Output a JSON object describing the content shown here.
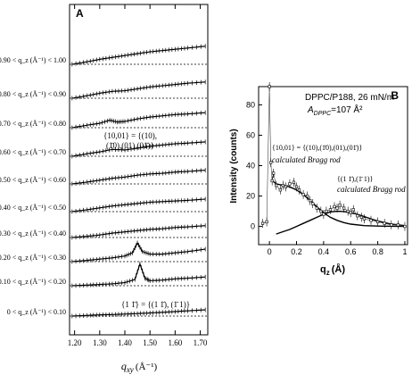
{
  "chart_data": [
    {
      "panel_label": "A",
      "type": "line",
      "xlabel": "q_xy (Å⁻¹)",
      "xlabel_main": "q",
      "xlabel_sub": "xy",
      "xlabel_unit": "(Å⁻¹)",
      "xlim": [
        1.18,
        1.73
      ],
      "x_ticks": [
        1.2,
        1.3,
        1.4,
        1.5,
        1.6,
        1.7
      ],
      "x_tick_labels": [
        "1.20",
        "1.30",
        "1.40",
        "1.50",
        "1.60",
        "1.70"
      ],
      "series": [
        {
          "name": "0 < q_z (Å⁻¹) < 0.10",
          "x": [
            1.19,
            1.25,
            1.3,
            1.35,
            1.4,
            1.45,
            1.5,
            1.55,
            1.6,
            1.65,
            1.72
          ],
          "y": [
            0.0,
            0.05,
            0.1,
            0.12,
            0.16,
            0.2,
            0.25,
            0.3,
            0.36,
            0.42,
            0.5
          ]
        },
        {
          "name": "0.10 < q_z (Å⁻¹) < 0.20",
          "x": [
            1.19,
            1.25,
            1.3,
            1.35,
            1.4,
            1.44,
            1.46,
            1.48,
            1.5,
            1.55,
            1.6,
            1.65,
            1.72
          ],
          "y": [
            0.0,
            0.05,
            0.1,
            0.15,
            0.25,
            0.5,
            1.75,
            0.6,
            0.4,
            0.45,
            0.55,
            0.6,
            0.7
          ]
        },
        {
          "name": "0.20 < q_z (Å⁻¹) < 0.30",
          "x": [
            1.19,
            1.25,
            1.3,
            1.35,
            1.4,
            1.43,
            1.45,
            1.47,
            1.5,
            1.55,
            1.6,
            1.65,
            1.72
          ],
          "y": [
            0.0,
            0.1,
            0.2,
            0.3,
            0.45,
            0.7,
            1.5,
            0.8,
            0.6,
            0.6,
            0.7,
            0.8,
            1.0
          ]
        },
        {
          "name": "0.30 < q_z (Å⁻¹) < 0.40",
          "x": [
            1.19,
            1.25,
            1.3,
            1.35,
            1.4,
            1.45,
            1.5,
            1.55,
            1.6,
            1.65,
            1.72
          ],
          "y": [
            0.0,
            0.1,
            0.2,
            0.35,
            0.45,
            0.55,
            0.65,
            0.7,
            0.8,
            0.85,
            0.95
          ]
        },
        {
          "name": "0.40 < q_z (Å⁻¹) < 0.50",
          "x": [
            1.19,
            1.25,
            1.3,
            1.35,
            1.4,
            1.45,
            1.5,
            1.55,
            1.6,
            1.65,
            1.72
          ],
          "y": [
            0.0,
            0.15,
            0.3,
            0.45,
            0.55,
            0.65,
            0.75,
            0.8,
            0.85,
            0.9,
            1.0
          ]
        },
        {
          "name": "0.50 < q_z (Å⁻¹) < 0.60",
          "x": [
            1.19,
            1.25,
            1.3,
            1.35,
            1.4,
            1.45,
            1.5,
            1.55,
            1.6,
            1.65,
            1.72
          ],
          "y": [
            0.0,
            0.15,
            0.3,
            0.45,
            0.55,
            0.7,
            0.8,
            0.85,
            0.95,
            1.0,
            1.1
          ]
        },
        {
          "name": "0.60 < q_z (Å⁻¹) < 0.70",
          "x": [
            1.19,
            1.25,
            1.3,
            1.35,
            1.4,
            1.45,
            1.5,
            1.55,
            1.6,
            1.65,
            1.72
          ],
          "y": [
            0.0,
            0.2,
            0.35,
            0.55,
            0.5,
            0.65,
            0.8,
            0.9,
            1.0,
            1.05,
            1.15
          ]
        },
        {
          "name": "0.70 < q_z (Å⁻¹) < 0.80",
          "x": [
            1.19,
            1.25,
            1.3,
            1.34,
            1.37,
            1.4,
            1.45,
            1.5,
            1.55,
            1.6,
            1.65,
            1.72
          ],
          "y": [
            0.0,
            0.2,
            0.35,
            0.6,
            0.45,
            0.5,
            0.7,
            0.85,
            0.95,
            1.05,
            1.1,
            1.2
          ]
        },
        {
          "name": "0.80 < q_z (Å⁻¹) < 0.90",
          "x": [
            1.19,
            1.25,
            1.3,
            1.35,
            1.4,
            1.45,
            1.5,
            1.55,
            1.6,
            1.65,
            1.72
          ],
          "y": [
            0.0,
            0.2,
            0.4,
            0.55,
            0.6,
            0.75,
            0.9,
            1.0,
            1.1,
            1.2,
            1.3
          ]
        },
        {
          "name": "0.90 < q_z (Å⁻¹) < 1.00",
          "x": [
            1.19,
            1.25,
            1.3,
            1.35,
            1.4,
            1.45,
            1.5,
            1.55,
            1.6,
            1.65,
            1.72
          ],
          "y": [
            0.0,
            0.2,
            0.4,
            0.55,
            0.7,
            0.85,
            1.0,
            1.1,
            1.2,
            1.3,
            1.45
          ]
        }
      ],
      "annotations": [
        "{1 1̄} = {(1 1̄), (1̄ 1)}",
        "{10,01} = {(10),",
        "(1̄0),(01),(01̄)}"
      ]
    },
    {
      "panel_label": "B",
      "type": "scatter",
      "title_line1": "DPPC/P188, 26 mN/m",
      "title_line2_main": "A",
      "title_line2_sub": "DPPC",
      "title_line2_rest": "=107 Å²",
      "xlabel": "q_z (Å)",
      "xlabel_main": "q",
      "xlabel_sub": "z",
      "xlabel_unit": "(Å)",
      "ylabel": "Intensity (counts)",
      "xlim": [
        -0.08,
        1.02
      ],
      "ylim": [
        -12,
        92
      ],
      "x_ticks": [
        0,
        0.2,
        0.4,
        0.6,
        0.8,
        1
      ],
      "x_tick_labels": [
        "0",
        "0.2",
        "0.4",
        "0.6",
        "0.8",
        "1"
      ],
      "y_ticks": [
        0,
        20,
        40,
        60,
        80
      ],
      "y_tick_labels": [
        "0",
        "20",
        "40",
        "60",
        "80"
      ],
      "data": {
        "x": [
          -0.05,
          -0.02,
          0.0,
          0.01,
          0.02,
          0.03,
          0.05,
          0.08,
          0.1,
          0.12,
          0.15,
          0.18,
          0.2,
          0.22,
          0.25,
          0.28,
          0.3,
          0.32,
          0.35,
          0.38,
          0.4,
          0.42,
          0.45,
          0.48,
          0.5,
          0.52,
          0.55,
          0.58,
          0.6,
          0.62,
          0.65,
          0.68,
          0.7,
          0.75,
          0.8,
          0.85,
          0.9,
          0.95,
          1.0
        ],
        "y": [
          2,
          3,
          92,
          42,
          30,
          35,
          27,
          24,
          27,
          26,
          28,
          29,
          26,
          24,
          21,
          20,
          17,
          15,
          12,
          10,
          8,
          10,
          11,
          13,
          12,
          14,
          12,
          10,
          9,
          11,
          7,
          6,
          5,
          4,
          3,
          2,
          1,
          1,
          0
        ]
      },
      "fits": [
        {
          "name": "calculated Bragg rod {10,01}",
          "x": [
            0.02,
            0.05,
            0.1,
            0.15,
            0.2,
            0.25,
            0.3,
            0.35,
            0.4,
            0.45,
            0.5,
            0.55,
            0.6,
            0.7,
            0.8,
            0.9,
            1.0
          ],
          "y": [
            30,
            28,
            27,
            26,
            24,
            21,
            17,
            13,
            9,
            6,
            4,
            2.5,
            1.5,
            0.5,
            0.2,
            0.1,
            0
          ]
        },
        {
          "name": "calculated Bragg rod {1 1̄}",
          "x": [
            0.05,
            0.1,
            0.15,
            0.2,
            0.25,
            0.3,
            0.35,
            0.4,
            0.45,
            0.5,
            0.55,
            0.6,
            0.65,
            0.7,
            0.75,
            0.8,
            0.9,
            1.0
          ],
          "y": [
            -5,
            -3.5,
            -2,
            0,
            2,
            4,
            6,
            8,
            9.5,
            10,
            9.8,
            9,
            8,
            6.5,
            5,
            3.5,
            1.5,
            0.5
          ]
        }
      ],
      "annotations": [
        "{10,01} = {(10),(1̄0),(01),(01̄)}",
        "calculated Bragg rod",
        "{(1 1̄),(1̄ 1)}",
        "calculated Bragg rod"
      ]
    }
  ]
}
